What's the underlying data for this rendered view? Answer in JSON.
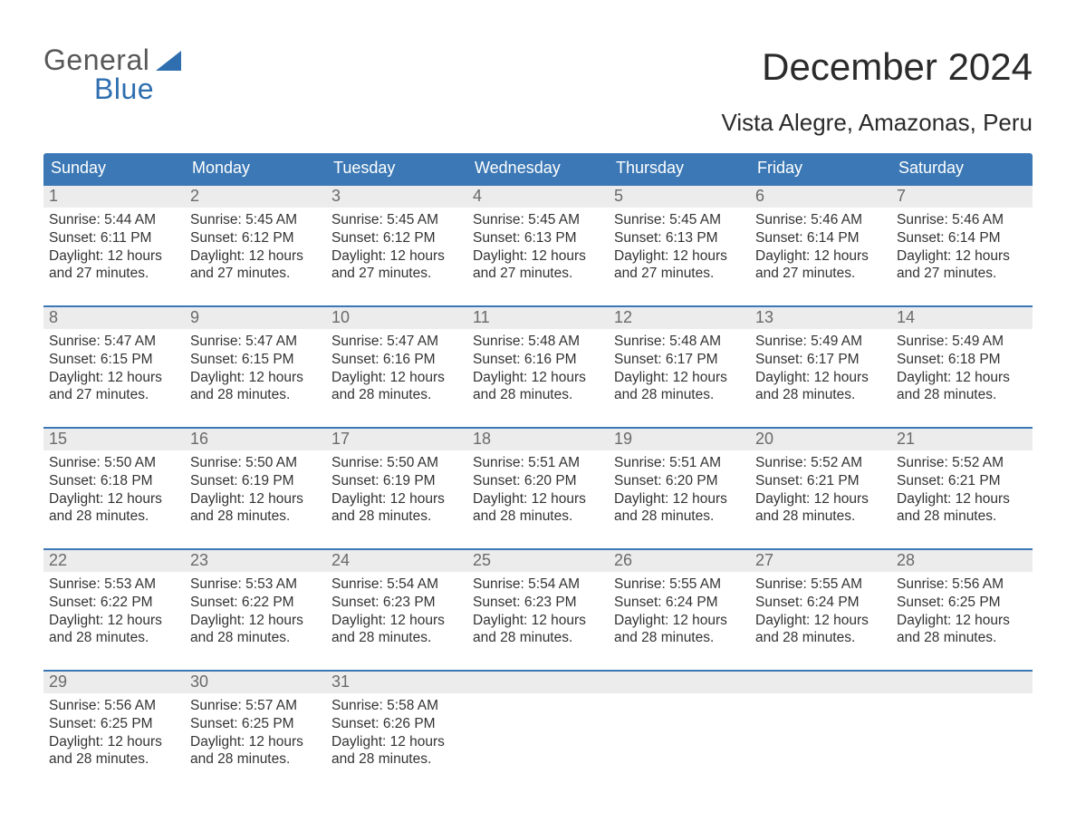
{
  "brand": {
    "top": "General",
    "bottom": "Blue",
    "color_top": "#585858",
    "color_bottom": "#2f6fb0",
    "sail_color": "#2f6fb0"
  },
  "title": "December 2024",
  "subtitle": "Vista Alegre, Amazonas, Peru",
  "colors": {
    "header_bg": "#3b78b5",
    "header_fg": "#ffffff",
    "daynum_bg": "#ececec",
    "daynum_fg": "#6a6a6a",
    "week_border": "#3b78b5",
    "body_text": "#333333",
    "page_bg": "#ffffff"
  },
  "typography": {
    "title_fontsize": 42,
    "subtitle_fontsize": 26,
    "weekday_fontsize": 18,
    "daynum_fontsize": 18,
    "body_fontsize": 15.5
  },
  "weekdays": [
    "Sunday",
    "Monday",
    "Tuesday",
    "Wednesday",
    "Thursday",
    "Friday",
    "Saturday"
  ],
  "weeks": [
    [
      {
        "num": "1",
        "sunrise": "Sunrise: 5:44 AM",
        "sunset": "Sunset: 6:11 PM",
        "daylight1": "Daylight: 12 hours",
        "daylight2": "and 27 minutes."
      },
      {
        "num": "2",
        "sunrise": "Sunrise: 5:45 AM",
        "sunset": "Sunset: 6:12 PM",
        "daylight1": "Daylight: 12 hours",
        "daylight2": "and 27 minutes."
      },
      {
        "num": "3",
        "sunrise": "Sunrise: 5:45 AM",
        "sunset": "Sunset: 6:12 PM",
        "daylight1": "Daylight: 12 hours",
        "daylight2": "and 27 minutes."
      },
      {
        "num": "4",
        "sunrise": "Sunrise: 5:45 AM",
        "sunset": "Sunset: 6:13 PM",
        "daylight1": "Daylight: 12 hours",
        "daylight2": "and 27 minutes."
      },
      {
        "num": "5",
        "sunrise": "Sunrise: 5:45 AM",
        "sunset": "Sunset: 6:13 PM",
        "daylight1": "Daylight: 12 hours",
        "daylight2": "and 27 minutes."
      },
      {
        "num": "6",
        "sunrise": "Sunrise: 5:46 AM",
        "sunset": "Sunset: 6:14 PM",
        "daylight1": "Daylight: 12 hours",
        "daylight2": "and 27 minutes."
      },
      {
        "num": "7",
        "sunrise": "Sunrise: 5:46 AM",
        "sunset": "Sunset: 6:14 PM",
        "daylight1": "Daylight: 12 hours",
        "daylight2": "and 27 minutes."
      }
    ],
    [
      {
        "num": "8",
        "sunrise": "Sunrise: 5:47 AM",
        "sunset": "Sunset: 6:15 PM",
        "daylight1": "Daylight: 12 hours",
        "daylight2": "and 27 minutes."
      },
      {
        "num": "9",
        "sunrise": "Sunrise: 5:47 AM",
        "sunset": "Sunset: 6:15 PM",
        "daylight1": "Daylight: 12 hours",
        "daylight2": "and 28 minutes."
      },
      {
        "num": "10",
        "sunrise": "Sunrise: 5:47 AM",
        "sunset": "Sunset: 6:16 PM",
        "daylight1": "Daylight: 12 hours",
        "daylight2": "and 28 minutes."
      },
      {
        "num": "11",
        "sunrise": "Sunrise: 5:48 AM",
        "sunset": "Sunset: 6:16 PM",
        "daylight1": "Daylight: 12 hours",
        "daylight2": "and 28 minutes."
      },
      {
        "num": "12",
        "sunrise": "Sunrise: 5:48 AM",
        "sunset": "Sunset: 6:17 PM",
        "daylight1": "Daylight: 12 hours",
        "daylight2": "and 28 minutes."
      },
      {
        "num": "13",
        "sunrise": "Sunrise: 5:49 AM",
        "sunset": "Sunset: 6:17 PM",
        "daylight1": "Daylight: 12 hours",
        "daylight2": "and 28 minutes."
      },
      {
        "num": "14",
        "sunrise": "Sunrise: 5:49 AM",
        "sunset": "Sunset: 6:18 PM",
        "daylight1": "Daylight: 12 hours",
        "daylight2": "and 28 minutes."
      }
    ],
    [
      {
        "num": "15",
        "sunrise": "Sunrise: 5:50 AM",
        "sunset": "Sunset: 6:18 PM",
        "daylight1": "Daylight: 12 hours",
        "daylight2": "and 28 minutes."
      },
      {
        "num": "16",
        "sunrise": "Sunrise: 5:50 AM",
        "sunset": "Sunset: 6:19 PM",
        "daylight1": "Daylight: 12 hours",
        "daylight2": "and 28 minutes."
      },
      {
        "num": "17",
        "sunrise": "Sunrise: 5:50 AM",
        "sunset": "Sunset: 6:19 PM",
        "daylight1": "Daylight: 12 hours",
        "daylight2": "and 28 minutes."
      },
      {
        "num": "18",
        "sunrise": "Sunrise: 5:51 AM",
        "sunset": "Sunset: 6:20 PM",
        "daylight1": "Daylight: 12 hours",
        "daylight2": "and 28 minutes."
      },
      {
        "num": "19",
        "sunrise": "Sunrise: 5:51 AM",
        "sunset": "Sunset: 6:20 PM",
        "daylight1": "Daylight: 12 hours",
        "daylight2": "and 28 minutes."
      },
      {
        "num": "20",
        "sunrise": "Sunrise: 5:52 AM",
        "sunset": "Sunset: 6:21 PM",
        "daylight1": "Daylight: 12 hours",
        "daylight2": "and 28 minutes."
      },
      {
        "num": "21",
        "sunrise": "Sunrise: 5:52 AM",
        "sunset": "Sunset: 6:21 PM",
        "daylight1": "Daylight: 12 hours",
        "daylight2": "and 28 minutes."
      }
    ],
    [
      {
        "num": "22",
        "sunrise": "Sunrise: 5:53 AM",
        "sunset": "Sunset: 6:22 PM",
        "daylight1": "Daylight: 12 hours",
        "daylight2": "and 28 minutes."
      },
      {
        "num": "23",
        "sunrise": "Sunrise: 5:53 AM",
        "sunset": "Sunset: 6:22 PM",
        "daylight1": "Daylight: 12 hours",
        "daylight2": "and 28 minutes."
      },
      {
        "num": "24",
        "sunrise": "Sunrise: 5:54 AM",
        "sunset": "Sunset: 6:23 PM",
        "daylight1": "Daylight: 12 hours",
        "daylight2": "and 28 minutes."
      },
      {
        "num": "25",
        "sunrise": "Sunrise: 5:54 AM",
        "sunset": "Sunset: 6:23 PM",
        "daylight1": "Daylight: 12 hours",
        "daylight2": "and 28 minutes."
      },
      {
        "num": "26",
        "sunrise": "Sunrise: 5:55 AM",
        "sunset": "Sunset: 6:24 PM",
        "daylight1": "Daylight: 12 hours",
        "daylight2": "and 28 minutes."
      },
      {
        "num": "27",
        "sunrise": "Sunrise: 5:55 AM",
        "sunset": "Sunset: 6:24 PM",
        "daylight1": "Daylight: 12 hours",
        "daylight2": "and 28 minutes."
      },
      {
        "num": "28",
        "sunrise": "Sunrise: 5:56 AM",
        "sunset": "Sunset: 6:25 PM",
        "daylight1": "Daylight: 12 hours",
        "daylight2": "and 28 minutes."
      }
    ],
    [
      {
        "num": "29",
        "sunrise": "Sunrise: 5:56 AM",
        "sunset": "Sunset: 6:25 PM",
        "daylight1": "Daylight: 12 hours",
        "daylight2": "and 28 minutes."
      },
      {
        "num": "30",
        "sunrise": "Sunrise: 5:57 AM",
        "sunset": "Sunset: 6:25 PM",
        "daylight1": "Daylight: 12 hours",
        "daylight2": "and 28 minutes."
      },
      {
        "num": "31",
        "sunrise": "Sunrise: 5:58 AM",
        "sunset": "Sunset: 6:26 PM",
        "daylight1": "Daylight: 12 hours",
        "daylight2": "and 28 minutes."
      },
      null,
      null,
      null,
      null
    ]
  ]
}
